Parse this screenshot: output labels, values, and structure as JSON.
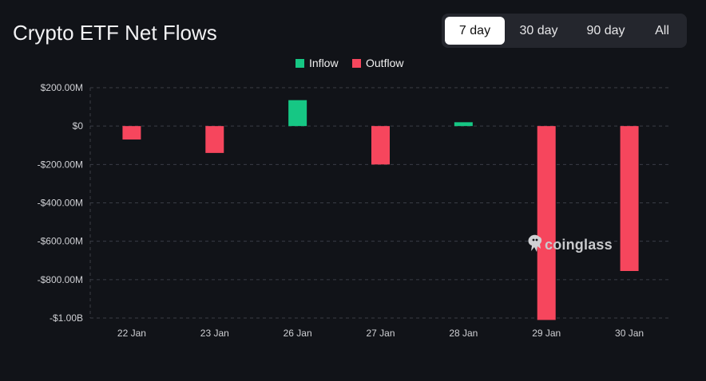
{
  "title": "Crypto ETF Net Flows",
  "ranges": [
    "7 day",
    "30 day",
    "90 day",
    "All"
  ],
  "active_range": "7 day",
  "legend": {
    "inflow": "Inflow",
    "outflow": "Outflow"
  },
  "colors": {
    "inflow": "#16c784",
    "outflow": "#f6465d",
    "background": "#111318"
  },
  "watermark": "coinglass",
  "chart_data": {
    "type": "bar",
    "title": "Crypto ETF Net Flows",
    "categories": [
      "22 Jan",
      "23 Jan",
      "26 Jan",
      "27 Jan",
      "28 Jan",
      "29 Jan",
      "30 Jan"
    ],
    "values": [
      -70000000,
      -140000000,
      135000000,
      -200000000,
      20000000,
      -1010000000,
      -755000000
    ],
    "series": [
      {
        "name": "Inflow",
        "values": [
          0,
          0,
          135000000,
          0,
          20000000,
          0,
          0
        ]
      },
      {
        "name": "Outflow",
        "values": [
          -70000000,
          -140000000,
          0,
          -200000000,
          0,
          -1010000000,
          -755000000
        ]
      }
    ],
    "yticks": [
      200000000,
      0,
      -200000000,
      -400000000,
      -600000000,
      -800000000,
      -1000000000
    ],
    "ytick_labels": [
      "$200.00M",
      "$0",
      "-$200.00M",
      "-$400.00M",
      "-$600.00M",
      "-$800.00M",
      "-$1.00B"
    ],
    "ylim": [
      -1000000000,
      200000000
    ],
    "legend_position": "top",
    "grid": "horizontal dashed",
    "xlabel": "",
    "ylabel": ""
  }
}
